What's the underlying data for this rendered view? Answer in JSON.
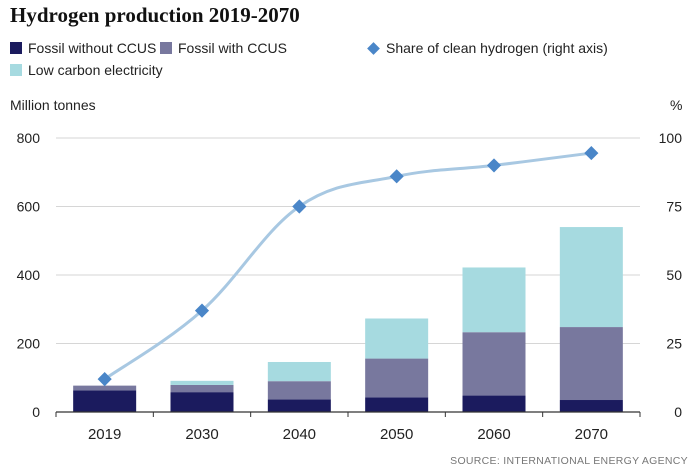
{
  "chart_data": {
    "type": "bar",
    "title": "Hydrogen production 2019-2070",
    "categories": [
      "2019",
      "2030",
      "2040",
      "2050",
      "2060",
      "2070"
    ],
    "series": [
      {
        "name": "Fossil without CCUS",
        "kind": "bar",
        "color": "#1b1b5e",
        "values": [
          63,
          58,
          37,
          43,
          48,
          35
        ]
      },
      {
        "name": "Fossil with CCUS",
        "kind": "bar",
        "color": "#78789e",
        "values": [
          14,
          21,
          53,
          113,
          185,
          213
        ]
      },
      {
        "name": "Low carbon electricity",
        "kind": "bar",
        "color": "#a6dae0",
        "values": [
          0,
          12,
          56,
          117,
          189,
          292
        ]
      },
      {
        "name": "Share of clean hydrogen (right axis)",
        "kind": "line",
        "axis": "right",
        "color": "#4a86c8",
        "line_color": "#a8c8e2",
        "values": [
          12,
          37,
          75,
          86,
          90,
          94.5
        ]
      }
    ],
    "ylabel": "Million tonnes",
    "ylim": [
      0,
      800
    ],
    "yticks": [
      "0",
      "200",
      "400",
      "600",
      "800"
    ],
    "y2label": "%",
    "y2lim": [
      0,
      100
    ],
    "y2ticks": [
      "0",
      "25",
      "50",
      "75",
      "100"
    ],
    "grid": true,
    "legend_position": "top",
    "source": "SOURCE: INTERNATIONAL ENERGY AGENCY"
  }
}
